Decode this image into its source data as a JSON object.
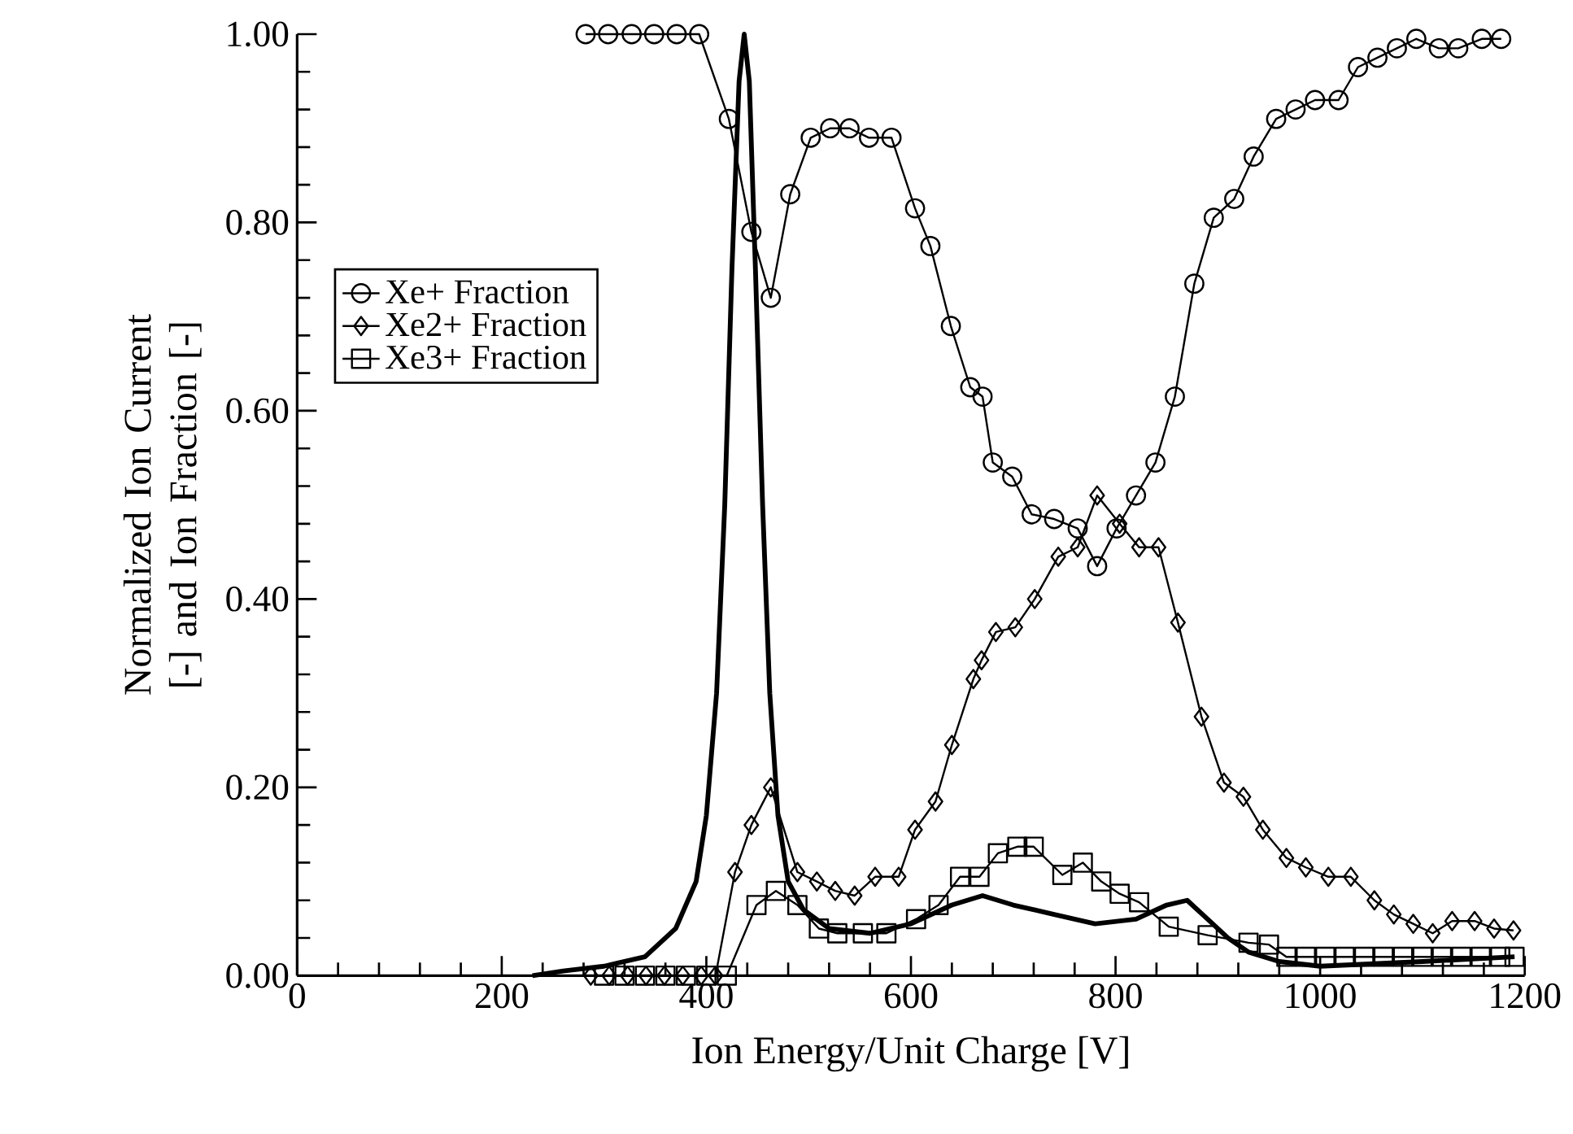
{
  "chart_data": {
    "type": "line",
    "xlabel": "Ion Energy/Unit Charge [V]",
    "ylabel": "Normalized Ion Current [-] and Ion Fraction [-]",
    "xlim": [
      0,
      1200
    ],
    "xticks": [
      0,
      200,
      400,
      600,
      800,
      1000,
      1200
    ],
    "ylim": [
      0,
      1
    ],
    "yticks": [
      {
        "value": 0,
        "label": "0.00"
      },
      {
        "value": 0.2,
        "label": "0.20"
      },
      {
        "value": 0.4,
        "label": "0.40"
      },
      {
        "value": 0.6,
        "label": "0.60"
      },
      {
        "value": 0.8,
        "label": "0.80"
      },
      {
        "value": 1,
        "label": "1.00"
      }
    ],
    "grid": false,
    "legend": "left",
    "series": [
      {
        "name": "Xe+ Fraction",
        "color": "#000000",
        "marker": "circle",
        "x": [
          282,
          304,
          327,
          349,
          371,
          393,
          422,
          444,
          463,
          482,
          502,
          521,
          540,
          559,
          581,
          604,
          619,
          639,
          658,
          670,
          680,
          699,
          718,
          740,
          763,
          782,
          801,
          820,
          839,
          858,
          877,
          896,
          916,
          935,
          957,
          976,
          995,
          1018,
          1037,
          1056,
          1075,
          1094,
          1116,
          1135,
          1158,
          1177
        ],
        "values": [
          1.0,
          1.0,
          1.0,
          1.0,
          1.0,
          1.0,
          0.91,
          0.79,
          0.72,
          0.83,
          0.89,
          0.9,
          0.9,
          0.89,
          0.89,
          0.815,
          0.775,
          0.69,
          0.625,
          0.615,
          0.545,
          0.53,
          0.49,
          0.485,
          0.475,
          0.435,
          0.475,
          0.51,
          0.545,
          0.615,
          0.735,
          0.805,
          0.825,
          0.87,
          0.91,
          0.92,
          0.93,
          0.93,
          0.965,
          0.975,
          0.985,
          0.995,
          0.985,
          0.985,
          0.995,
          0.995
        ]
      },
      {
        "name": "Xe2+ Fraction",
        "color": "#000000",
        "marker": "diamond",
        "x": [
          287,
          305,
          323,
          341,
          359,
          377,
          395,
          409,
          428,
          444,
          463,
          489,
          508,
          526,
          545,
          565,
          588,
          604,
          624,
          640,
          661,
          669,
          683,
          702,
          721,
          744,
          763,
          782,
          804,
          823,
          842,
          861,
          884,
          906,
          925,
          944,
          967,
          986,
          1008,
          1030,
          1053,
          1072,
          1091,
          1110,
          1129,
          1151,
          1170,
          1189
        ],
        "values": [
          0,
          0,
          0,
          0,
          0,
          0,
          0,
          0,
          0.11,
          0.16,
          0.2,
          0.11,
          0.1,
          0.09,
          0.085,
          0.105,
          0.105,
          0.155,
          0.185,
          0.245,
          0.315,
          0.335,
          0.365,
          0.37,
          0.4,
          0.445,
          0.455,
          0.51,
          0.48,
          0.455,
          0.455,
          0.375,
          0.275,
          0.205,
          0.19,
          0.155,
          0.125,
          0.115,
          0.105,
          0.105,
          0.08,
          0.065,
          0.055,
          0.045,
          0.058,
          0.058,
          0.05,
          0.048
        ]
      },
      {
        "name": "Xe3+ Fraction",
        "color": "#000000",
        "marker": "square",
        "x": [
          300,
          320,
          340,
          360,
          380,
          400,
          420,
          449,
          468,
          489,
          510,
          528,
          553,
          576,
          605,
          627,
          648,
          667,
          685,
          704,
          720,
          748,
          768,
          786,
          804,
          823,
          852,
          890,
          930,
          950,
          967,
          986,
          1005,
          1024,
          1043,
          1062,
          1081,
          1100,
          1119,
          1138,
          1157,
          1176,
          1190
        ],
        "values": [
          0,
          0,
          0,
          0,
          0,
          0,
          0,
          0.075,
          0.09,
          0.075,
          0.05,
          0.045,
          0.045,
          0.045,
          0.06,
          0.075,
          0.105,
          0.105,
          0.13,
          0.137,
          0.137,
          0.107,
          0.12,
          0.1,
          0.087,
          0.078,
          0.052,
          0.043,
          0.035,
          0.033,
          0.02,
          0.02,
          0.02,
          0.02,
          0.02,
          0.02,
          0.02,
          0.02,
          0.02,
          0.02,
          0.02,
          0.02,
          0.02
        ]
      },
      {
        "color": "#000000",
        "marker": "none",
        "x": [
          230,
          260,
          300,
          340,
          370,
          390,
          400,
          410,
          418,
          425,
          432,
          437,
          442,
          448,
          455,
          462,
          470,
          480,
          495,
          520,
          560,
          600,
          640,
          670,
          700,
          740,
          780,
          820,
          850,
          870,
          890,
          910,
          930,
          960,
          1000,
          1100,
          1190
        ],
        "values": [
          0,
          0.005,
          0.01,
          0.02,
          0.05,
          0.1,
          0.17,
          0.3,
          0.5,
          0.75,
          0.95,
          1.0,
          0.95,
          0.75,
          0.5,
          0.3,
          0.17,
          0.1,
          0.07,
          0.05,
          0.045,
          0.055,
          0.075,
          0.085,
          0.075,
          0.065,
          0.055,
          0.06,
          0.075,
          0.08,
          0.06,
          0.04,
          0.025,
          0.015,
          0.01,
          0.015,
          0.02
        ]
      }
    ]
  }
}
